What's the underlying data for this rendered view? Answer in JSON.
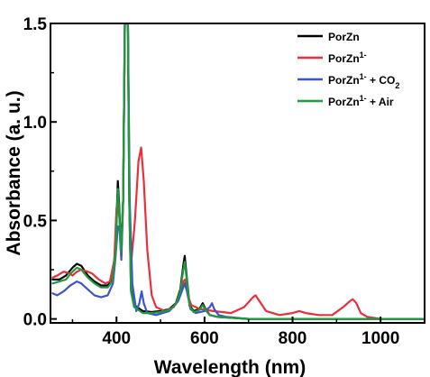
{
  "chart_data": {
    "type": "line",
    "xlabel": "Wavelength (nm)",
    "ylabel": "Absorbance (a. u.)",
    "xlim": [
      250,
      1100
    ],
    "ylim": [
      -0.02,
      1.5
    ],
    "x_ticks": [
      400,
      600,
      800,
      1000
    ],
    "x_tick_labels": [
      "400",
      "600",
      "800",
      "1000"
    ],
    "y_ticks": [
      0.0,
      0.5,
      1.0,
      1.5
    ],
    "y_tick_labels": [
      "0.0",
      "0.5",
      "1.0",
      "1.5"
    ],
    "legend_position": "top-right",
    "grid": false,
    "series": [
      {
        "name": "PorZn",
        "legend": {
          "base": "PorZn",
          "sup": "",
          "mid": "",
          "sub": ""
        },
        "color": "#000000",
        "points": [
          [
            255,
            0.2
          ],
          [
            270,
            0.2
          ],
          [
            285,
            0.22
          ],
          [
            300,
            0.26
          ],
          [
            310,
            0.28
          ],
          [
            320,
            0.27
          ],
          [
            335,
            0.22
          ],
          [
            350,
            0.19
          ],
          [
            365,
            0.17
          ],
          [
            380,
            0.17
          ],
          [
            390,
            0.2
          ],
          [
            398,
            0.36
          ],
          [
            403,
            0.7
          ],
          [
            406,
            0.58
          ],
          [
            410,
            0.35
          ],
          [
            415,
            0.6
          ],
          [
            419,
            1.5
          ],
          [
            426,
            1.5
          ],
          [
            429,
            0.6
          ],
          [
            433,
            0.15
          ],
          [
            440,
            0.07
          ],
          [
            460,
            0.04
          ],
          [
            480,
            0.035
          ],
          [
            500,
            0.04
          ],
          [
            520,
            0.05
          ],
          [
            535,
            0.08
          ],
          [
            545,
            0.15
          ],
          [
            551,
            0.26
          ],
          [
            555,
            0.32
          ],
          [
            560,
            0.2
          ],
          [
            566,
            0.07
          ],
          [
            575,
            0.04
          ],
          [
            588,
            0.05
          ],
          [
            596,
            0.08
          ],
          [
            602,
            0.05
          ],
          [
            612,
            0.02
          ],
          [
            630,
            0.01
          ],
          [
            700,
            0.0
          ],
          [
            800,
            0.0
          ],
          [
            900,
            0.0
          ],
          [
            1000,
            0.0
          ],
          [
            1100,
            0.0
          ]
        ]
      },
      {
        "name": "PorZn1-",
        "legend": {
          "base": "PorZn",
          "sup": "1-",
          "mid": "",
          "sub": ""
        },
        "color": "#e8303c",
        "points": [
          [
            255,
            0.21
          ],
          [
            265,
            0.22
          ],
          [
            280,
            0.24
          ],
          [
            295,
            0.23
          ],
          [
            300,
            0.22
          ],
          [
            310,
            0.24
          ],
          [
            320,
            0.25
          ],
          [
            335,
            0.24
          ],
          [
            345,
            0.23
          ],
          [
            360,
            0.2
          ],
          [
            375,
            0.18
          ],
          [
            385,
            0.19
          ],
          [
            395,
            0.3
          ],
          [
            400,
            0.56
          ],
          [
            403,
            0.6
          ],
          [
            407,
            0.5
          ],
          [
            411,
            0.32
          ],
          [
            415,
            0.6
          ],
          [
            419,
            1.5
          ],
          [
            426,
            1.5
          ],
          [
            430,
            0.5
          ],
          [
            434,
            0.3
          ],
          [
            442,
            0.5
          ],
          [
            450,
            0.8
          ],
          [
            456,
            0.87
          ],
          [
            462,
            0.7
          ],
          [
            470,
            0.35
          ],
          [
            480,
            0.12
          ],
          [
            490,
            0.06
          ],
          [
            510,
            0.04
          ],
          [
            530,
            0.06
          ],
          [
            545,
            0.12
          ],
          [
            552,
            0.19
          ],
          [
            556,
            0.2
          ],
          [
            562,
            0.12
          ],
          [
            570,
            0.07
          ],
          [
            590,
            0.05
          ],
          [
            620,
            0.04
          ],
          [
            660,
            0.03
          ],
          [
            690,
            0.06
          ],
          [
            710,
            0.11
          ],
          [
            716,
            0.12
          ],
          [
            725,
            0.09
          ],
          [
            740,
            0.04
          ],
          [
            770,
            0.02
          ],
          [
            800,
            0.03
          ],
          [
            815,
            0.04
          ],
          [
            830,
            0.03
          ],
          [
            860,
            0.02
          ],
          [
            890,
            0.02
          ],
          [
            915,
            0.06
          ],
          [
            930,
            0.09
          ],
          [
            937,
            0.1
          ],
          [
            945,
            0.08
          ],
          [
            955,
            0.03
          ],
          [
            970,
            0.01
          ],
          [
            1000,
            0.0
          ],
          [
            1050,
            0.0
          ],
          [
            1100,
            0.0
          ]
        ]
      },
      {
        "name": "PorZn1- + CO2",
        "legend": {
          "base": "PorZn",
          "sup": "1-",
          "mid": " + CO",
          "sub": "2"
        },
        "color": "#3b56c9",
        "points": [
          [
            255,
            0.13
          ],
          [
            265,
            0.12
          ],
          [
            280,
            0.14
          ],
          [
            295,
            0.17
          ],
          [
            310,
            0.19
          ],
          [
            320,
            0.18
          ],
          [
            335,
            0.15
          ],
          [
            350,
            0.12
          ],
          [
            365,
            0.11
          ],
          [
            380,
            0.12
          ],
          [
            392,
            0.18
          ],
          [
            398,
            0.32
          ],
          [
            403,
            0.47
          ],
          [
            407,
            0.45
          ],
          [
            411,
            0.3
          ],
          [
            415,
            0.6
          ],
          [
            419,
            1.5
          ],
          [
            426,
            1.5
          ],
          [
            430,
            0.6
          ],
          [
            436,
            0.18
          ],
          [
            445,
            0.04
          ],
          [
            452,
            0.08
          ],
          [
            457,
            0.14
          ],
          [
            462,
            0.08
          ],
          [
            470,
            0.03
          ],
          [
            490,
            0.02
          ],
          [
            520,
            0.04
          ],
          [
            540,
            0.09
          ],
          [
            550,
            0.15
          ],
          [
            555,
            0.18
          ],
          [
            560,
            0.14
          ],
          [
            568,
            0.05
          ],
          [
            580,
            0.03
          ],
          [
            600,
            0.04
          ],
          [
            612,
            0.06
          ],
          [
            617,
            0.08
          ],
          [
            622,
            0.05
          ],
          [
            632,
            0.02
          ],
          [
            650,
            0.01
          ],
          [
            700,
            0.0
          ],
          [
            800,
            0.0
          ],
          [
            900,
            0.0
          ],
          [
            1000,
            0.0
          ],
          [
            1100,
            0.0
          ]
        ]
      },
      {
        "name": "PorZn1- + Air",
        "legend": {
          "base": "PorZn",
          "sup": "1-",
          "mid": " + Air",
          "sub": ""
        },
        "color": "#1e9a3c",
        "points": [
          [
            255,
            0.18
          ],
          [
            270,
            0.19
          ],
          [
            285,
            0.2
          ],
          [
            300,
            0.24
          ],
          [
            310,
            0.26
          ],
          [
            320,
            0.25
          ],
          [
            335,
            0.21
          ],
          [
            350,
            0.18
          ],
          [
            365,
            0.16
          ],
          [
            380,
            0.16
          ],
          [
            390,
            0.19
          ],
          [
            398,
            0.34
          ],
          [
            403,
            0.66
          ],
          [
            406,
            0.55
          ],
          [
            410,
            0.34
          ],
          [
            415,
            0.6
          ],
          [
            419,
            1.5
          ],
          [
            426,
            1.5
          ],
          [
            429,
            0.6
          ],
          [
            433,
            0.14
          ],
          [
            440,
            0.06
          ],
          [
            460,
            0.03
          ],
          [
            480,
            0.03
          ],
          [
            500,
            0.035
          ],
          [
            520,
            0.045
          ],
          [
            535,
            0.075
          ],
          [
            545,
            0.14
          ],
          [
            551,
            0.24
          ],
          [
            555,
            0.29
          ],
          [
            560,
            0.19
          ],
          [
            566,
            0.065
          ],
          [
            575,
            0.035
          ],
          [
            588,
            0.045
          ],
          [
            596,
            0.07
          ],
          [
            602,
            0.045
          ],
          [
            612,
            0.02
          ],
          [
            630,
            0.01
          ],
          [
            700,
            0.0
          ],
          [
            800,
            0.0
          ],
          [
            900,
            0.0
          ],
          [
            1000,
            0.0
          ],
          [
            1100,
            0.0
          ]
        ]
      }
    ]
  }
}
